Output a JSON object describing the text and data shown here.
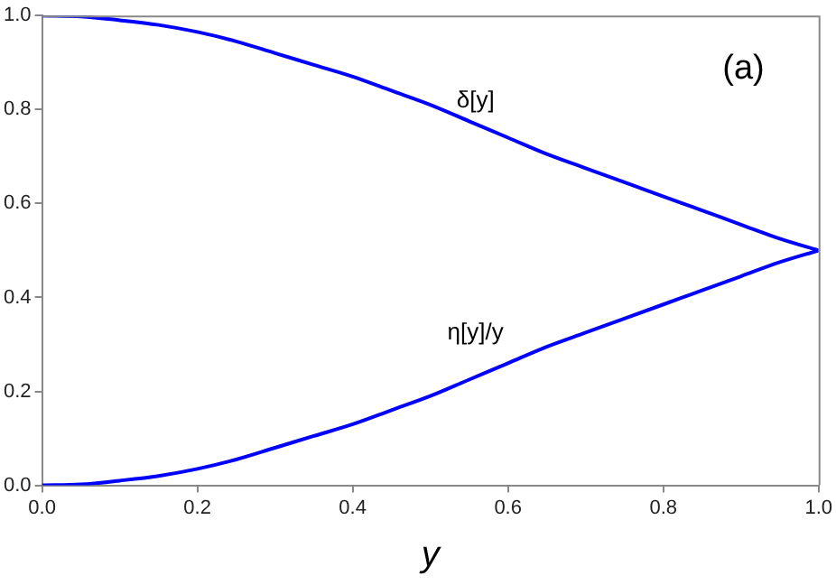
{
  "chart_data": {
    "type": "line",
    "xlabel": "y",
    "x": [
      0,
      0.05,
      0.1,
      0.15,
      0.2,
      0.25,
      0.3,
      0.35,
      0.4,
      0.45,
      0.5,
      0.55,
      0.6,
      0.65,
      0.7,
      0.75,
      0.8,
      0.85,
      0.9,
      0.95,
      1
    ],
    "series": [
      {
        "name": "δ[y]",
        "color": "#0000ff",
        "values": [
          1,
          0.998,
          0.99,
          0.98,
          0.965,
          0.945,
          0.92,
          0.895,
          0.87,
          0.84,
          0.81,
          0.775,
          0.74,
          0.705,
          0.675,
          0.645,
          0.615,
          0.585,
          0.555,
          0.525,
          0.5
        ]
      },
      {
        "name": "η[y]/y",
        "color": "#0000ff",
        "values": [
          0,
          0.002,
          0.01,
          0.02,
          0.035,
          0.055,
          0.08,
          0.105,
          0.13,
          0.16,
          0.19,
          0.225,
          0.26,
          0.295,
          0.325,
          0.355,
          0.385,
          0.415,
          0.445,
          0.475,
          0.5
        ]
      }
    ],
    "annotations": [
      "(a)"
    ],
    "xlim": [
      0,
      1
    ],
    "ylim": [
      0,
      1
    ],
    "xticks": [
      {
        "value": 0,
        "label": "0.0"
      },
      0.2,
      0.4,
      0.6,
      0.8,
      {
        "value": 1,
        "label": "1.0"
      }
    ],
    "yticks": [
      {
        "value": 0,
        "label": "0.0"
      },
      0.2,
      0.4,
      0.6,
      0.8,
      {
        "value": 1,
        "label": "1.0"
      }
    ],
    "grid": false,
    "legend": false,
    "marker": "none",
    "line_style": "solid"
  }
}
